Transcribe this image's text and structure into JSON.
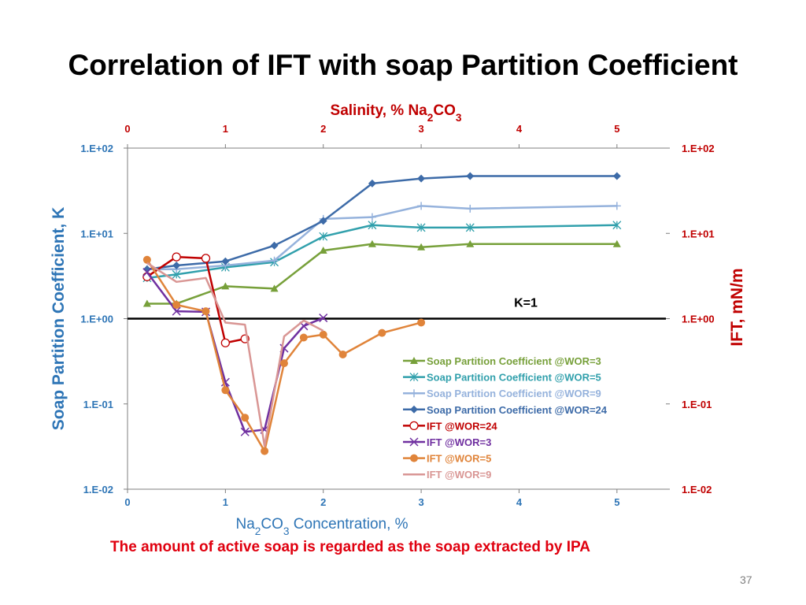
{
  "slide": {
    "title": "Correlation of IFT with soap Partition Coefficient",
    "footnote": "The amount of active soap is regarded as the soap extracted by IPA",
    "page_number": "37"
  },
  "chart_data": {
    "type": "line",
    "title": "",
    "top_axis": {
      "label": "Salinity, % Na2CO3",
      "ticks": [
        "0",
        "1",
        "2",
        "3",
        "4",
        "5"
      ],
      "range": [
        0,
        5.5
      ],
      "color": "#c00000"
    },
    "xlabel": "Na2CO3 Concentration, %",
    "xlim": [
      0,
      5.5
    ],
    "xticks": [
      "0",
      "1",
      "2",
      "3",
      "4",
      "5"
    ],
    "left_axis": {
      "label": "Soap Partition Coefficient, K",
      "color": "#2e75b6",
      "scale": "log",
      "range": [
        0.01,
        100
      ],
      "ticks": [
        "1.E+02",
        "1.E+01",
        "1.E+00",
        "1.E-01",
        "1.E-02"
      ]
    },
    "right_axis": {
      "label": "IFT, mN/m",
      "color": "#c00000",
      "scale": "log",
      "range": [
        0.01,
        100
      ],
      "ticks": [
        "1.E+02",
        "1.E+01",
        "1.E+00",
        "1.E-01",
        "1.E-02"
      ]
    },
    "reference_line": {
      "y": 1,
      "label": "K=1"
    },
    "legend_position": "bottom-right inside plot",
    "series": [
      {
        "name": "Soap Partition Coefficient @WOR=3",
        "color": "#77a03a",
        "marker": "triangle",
        "x": [
          0.2,
          0.5,
          1.0,
          1.5,
          2.0,
          2.5,
          3.0,
          3.5,
          5.0
        ],
        "y": [
          1.5,
          1.5,
          2.4,
          2.25,
          6.3,
          7.5,
          6.9,
          7.5,
          7.5
        ]
      },
      {
        "name": "Soap Partition Coefficient @WOR=5",
        "color": "#31a0ac",
        "marker": "asterisk",
        "x": [
          0.2,
          0.5,
          1.0,
          1.5,
          2.0,
          2.5,
          3.0,
          3.5,
          5.0
        ],
        "y": [
          3.0,
          3.3,
          4.0,
          4.6,
          9.2,
          12.5,
          11.7,
          11.7,
          12.5
        ]
      },
      {
        "name": "Soap Partition Coefficient @WOR=9",
        "color": "#95b2dc",
        "marker": "plus",
        "x": [
          0.2,
          0.5,
          1.0,
          1.5,
          2.0,
          2.5,
          3.0,
          3.5,
          5.0
        ],
        "y": [
          3.8,
          3.8,
          4.2,
          4.8,
          14.8,
          15.5,
          21.0,
          19.5,
          21.0
        ]
      },
      {
        "name": "Soap Partition Coefficient @WOR=24",
        "color": "#3d6ba8",
        "marker": "diamond",
        "x": [
          0.2,
          0.5,
          1.0,
          1.5,
          2.0,
          2.5,
          3.0,
          3.5,
          5.0
        ],
        "y": [
          3.8,
          4.2,
          4.7,
          7.2,
          14.0,
          38.5,
          44.0,
          47.0,
          47.0
        ]
      },
      {
        "name": "IFT @WOR=24",
        "color": "#c00000",
        "marker": "open-circle",
        "x": [
          0.2,
          0.5,
          0.8,
          1.0,
          1.2
        ],
        "y": [
          3.1,
          5.3,
          5.1,
          0.52,
          0.58
        ]
      },
      {
        "name": "IFT @WOR=3",
        "color": "#7030a0",
        "marker": "x",
        "x": [
          0.2,
          0.5,
          0.8,
          1.0,
          1.2,
          1.4,
          1.6,
          1.8,
          2.0
        ],
        "y": [
          3.5,
          1.22,
          1.2,
          0.18,
          0.047,
          0.05,
          0.45,
          0.82,
          1.02
        ]
      },
      {
        "name": "IFT @WOR=5",
        "color": "#e0843a",
        "marker": "dot",
        "x": [
          0.2,
          0.5,
          0.8,
          1.0,
          1.2,
          1.4,
          1.6,
          1.8,
          2.0,
          2.2,
          2.6,
          3.0
        ],
        "y": [
          4.9,
          1.45,
          1.22,
          0.145,
          0.069,
          0.028,
          0.3,
          0.6,
          0.65,
          0.38,
          0.68,
          0.9
        ]
      },
      {
        "name": "IFT @WOR=9",
        "color": "#d99694",
        "marker": "none",
        "x": [
          0.2,
          0.5,
          0.8,
          1.0,
          1.2,
          1.4,
          1.6,
          1.8,
          2.0
        ],
        "y": [
          4.5,
          2.7,
          3.0,
          0.9,
          0.85,
          0.032,
          0.62,
          0.95,
          0.72
        ]
      }
    ]
  }
}
